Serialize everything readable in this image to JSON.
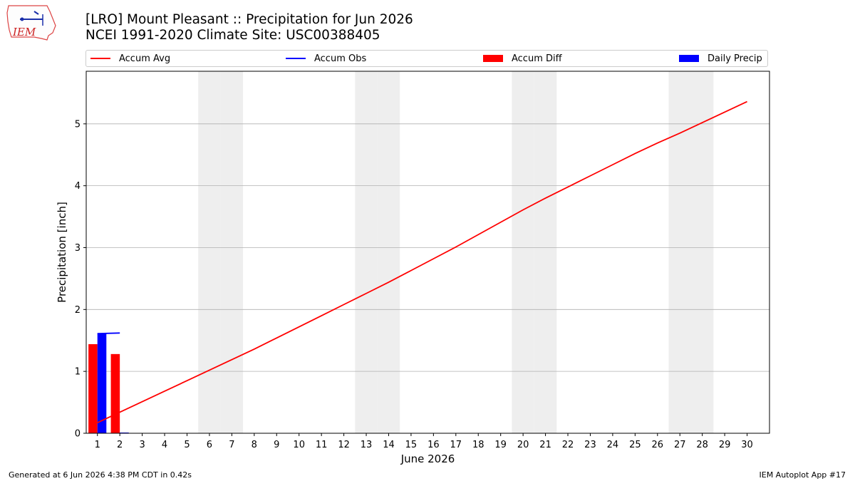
{
  "header": {
    "logo_text": "IEM",
    "title_line1": "[LRO] Mount Pleasant :: Precipitation for Jun 2026",
    "title_line2": "NCEI 1991-2020 Climate Site: USC00388405"
  },
  "legend": {
    "placement": "top",
    "items": [
      {
        "label": "Accum Avg",
        "kind": "line",
        "color": "#ff0000"
      },
      {
        "label": "Accum Obs",
        "kind": "line",
        "color": "#0000ff"
      },
      {
        "label": "Accum Diff",
        "kind": "bar",
        "color": "#ff0000"
      },
      {
        "label": "Daily Precip",
        "kind": "bar",
        "color": "#0000ff"
      }
    ]
  },
  "footer": {
    "left": "Generated at 6 Jun 2026 4:38 PM CDT in 0.42s",
    "right": "IEM Autoplot App #17"
  },
  "chart_data": {
    "type": "bar",
    "xlabel": "June 2026",
    "ylabel": "Precipitation [inch]",
    "xlim": [
      0.5,
      31
    ],
    "ylim": [
      0,
      5.85
    ],
    "yticks": [
      0,
      1,
      2,
      3,
      4,
      5
    ],
    "days": [
      1,
      2,
      3,
      4,
      5,
      6,
      7,
      8,
      9,
      10,
      11,
      12,
      13,
      14,
      15,
      16,
      17,
      18,
      19,
      20,
      21,
      22,
      23,
      24,
      25,
      26,
      27,
      28,
      29,
      30
    ],
    "weekend_days": [
      6,
      7,
      13,
      14,
      20,
      21,
      27,
      28
    ],
    "grid": "y",
    "colors": {
      "avg": "#ff0000",
      "obs": "#0000ff",
      "diff": "#ff0000",
      "daily": "#0000ff",
      "weekend": "#eeeeee",
      "grid": "#b0b0b0"
    },
    "series": [
      {
        "name": "Accum Avg",
        "kind": "line",
        "x": [
          1,
          2,
          3,
          4,
          5,
          6,
          7,
          8,
          9,
          10,
          11,
          12,
          13,
          14,
          15,
          16,
          17,
          18,
          19,
          20,
          21,
          22,
          23,
          24,
          25,
          26,
          27,
          28,
          29,
          30
        ],
        "values": [
          0.17,
          0.34,
          0.51,
          0.68,
          0.85,
          1.02,
          1.19,
          1.36,
          1.54,
          1.72,
          1.9,
          2.08,
          2.26,
          2.44,
          2.63,
          2.82,
          3.01,
          3.21,
          3.41,
          3.61,
          3.8,
          3.98,
          4.16,
          4.34,
          4.52,
          4.69,
          4.85,
          5.02,
          5.19,
          5.36
        ]
      },
      {
        "name": "Accum Obs",
        "kind": "line",
        "x": [
          1,
          2
        ],
        "values": [
          1.61,
          1.62
        ]
      },
      {
        "name": "Accum Diff",
        "kind": "bar",
        "x": [
          1,
          2
        ],
        "values": [
          1.44,
          1.28
        ]
      },
      {
        "name": "Daily Precip",
        "kind": "bar",
        "x": [
          1,
          2
        ],
        "values": [
          1.61,
          0.01
        ]
      }
    ]
  }
}
